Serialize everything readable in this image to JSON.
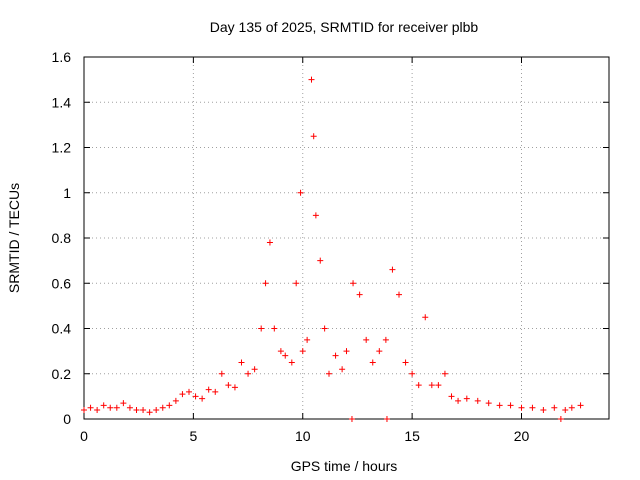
{
  "chart_data": {
    "type": "scatter",
    "title": "Day 135 of 2025, SRMTID for receiver plbb",
    "xlabel": "GPS time / hours",
    "ylabel": "SRMTID / TECUs",
    "xlim": [
      0,
      24
    ],
    "ylim": [
      0,
      1.6
    ],
    "xticks": [
      0,
      5,
      10,
      15,
      20
    ],
    "yticks": [
      0,
      0.2,
      0.4,
      0.6,
      0.8,
      1,
      1.2,
      1.4,
      1.6
    ],
    "xtick_labels": [
      "0",
      "5",
      "10",
      "15",
      "20"
    ],
    "ytick_labels": [
      "0",
      "0.2",
      "0.4",
      "0.6",
      "0.8",
      "1",
      "1.2",
      "1.4",
      "1.6"
    ],
    "grid": true,
    "marker": "+",
    "color": "#ff0000",
    "series": [
      {
        "name": "SRMTID",
        "points": [
          [
            0.0,
            0.04
          ],
          [
            0.3,
            0.05
          ],
          [
            0.6,
            0.04
          ],
          [
            0.9,
            0.06
          ],
          [
            1.2,
            0.05
          ],
          [
            1.5,
            0.05
          ],
          [
            1.8,
            0.07
          ],
          [
            2.1,
            0.05
          ],
          [
            2.4,
            0.04
          ],
          [
            2.7,
            0.04
          ],
          [
            3.0,
            0.03
          ],
          [
            3.3,
            0.04
          ],
          [
            3.6,
            0.05
          ],
          [
            3.9,
            0.06
          ],
          [
            4.2,
            0.08
          ],
          [
            4.5,
            0.11
          ],
          [
            4.8,
            0.12
          ],
          [
            5.1,
            0.1
          ],
          [
            5.4,
            0.09
          ],
          [
            5.7,
            0.13
          ],
          [
            6.0,
            0.12
          ],
          [
            6.3,
            0.2
          ],
          [
            6.6,
            0.15
          ],
          [
            6.9,
            0.14
          ],
          [
            7.2,
            0.25
          ],
          [
            7.5,
            0.2
          ],
          [
            7.8,
            0.22
          ],
          [
            8.1,
            0.4
          ],
          [
            8.3,
            0.6
          ],
          [
            8.5,
            0.78
          ],
          [
            8.7,
            0.4
          ],
          [
            9.0,
            0.3
          ],
          [
            9.2,
            0.28
          ],
          [
            9.5,
            0.25
          ],
          [
            9.7,
            0.6
          ],
          [
            9.9,
            1.0
          ],
          [
            10.0,
            0.3
          ],
          [
            10.2,
            0.35
          ],
          [
            10.4,
            1.5
          ],
          [
            10.5,
            1.25
          ],
          [
            10.6,
            0.9
          ],
          [
            10.8,
            0.7
          ],
          [
            11.0,
            0.4
          ],
          [
            11.2,
            0.2
          ],
          [
            11.5,
            0.28
          ],
          [
            11.8,
            0.22
          ],
          [
            12.0,
            0.3
          ],
          [
            12.3,
            0.6
          ],
          [
            12.6,
            0.55
          ],
          [
            12.9,
            0.35
          ],
          [
            13.2,
            0.25
          ],
          [
            13.5,
            0.3
          ],
          [
            13.8,
            0.35
          ],
          [
            14.1,
            0.66
          ],
          [
            14.4,
            0.55
          ],
          [
            14.7,
            0.25
          ],
          [
            15.0,
            0.2
          ],
          [
            15.3,
            0.15
          ],
          [
            15.6,
            0.45
          ],
          [
            15.9,
            0.15
          ],
          [
            16.2,
            0.15
          ],
          [
            16.5,
            0.2
          ],
          [
            16.8,
            0.1
          ],
          [
            17.1,
            0.08
          ],
          [
            17.5,
            0.09
          ],
          [
            18.0,
            0.08
          ],
          [
            18.5,
            0.07
          ],
          [
            19.0,
            0.06
          ],
          [
            19.5,
            0.06
          ],
          [
            20.0,
            0.05
          ],
          [
            20.5,
            0.05
          ],
          [
            21.0,
            0.04
          ],
          [
            21.5,
            0.05
          ],
          [
            22.0,
            0.04
          ],
          [
            22.3,
            0.05
          ],
          [
            22.7,
            0.06
          ],
          [
            12.25,
            0.0
          ],
          [
            13.85,
            0.0
          ],
          [
            21.8,
            0.0
          ]
        ]
      }
    ]
  }
}
